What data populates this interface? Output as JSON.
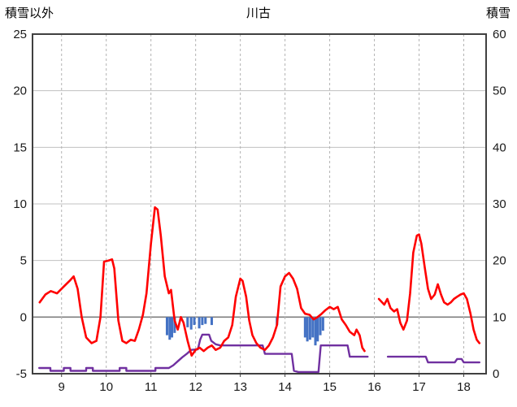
{
  "header": {
    "left_axis_label": "積雪以外",
    "title": "川古",
    "right_axis_label": "積雪"
  },
  "chart_data": {
    "type": "line",
    "title": "川古",
    "left_axis": {
      "label": "積雪以外",
      "min": -5,
      "max": 25,
      "ticks": [
        25,
        20,
        15,
        10,
        5,
        0,
        -5
      ]
    },
    "right_axis": {
      "label": "積雪",
      "min": 0,
      "max": 60,
      "ticks": [
        60,
        50,
        40,
        30,
        20,
        10,
        0
      ]
    },
    "x_axis": {
      "min": 8.35,
      "max": 18.5,
      "ticks": [
        9,
        10,
        11,
        12,
        13,
        14,
        15,
        16,
        17,
        18
      ]
    },
    "grid": {
      "h_color": "#c0c0c0",
      "v_color": "#b3b3b3",
      "zero_color": "#7f7f7f",
      "border_color": "#404040"
    },
    "series": [
      {
        "name": "precip-bars",
        "type": "bar-down",
        "axis": "left",
        "color": "#4472c4",
        "bar_width": 0.055,
        "points": [
          [
            11.36,
            1.6
          ],
          [
            11.42,
            2.0
          ],
          [
            11.47,
            1.8
          ],
          [
            11.53,
            1.4
          ],
          [
            11.82,
            0.9
          ],
          [
            11.9,
            1.1
          ],
          [
            11.97,
            0.7
          ],
          [
            12.08,
            1.0
          ],
          [
            12.15,
            0.7
          ],
          [
            12.22,
            0.6
          ],
          [
            12.36,
            0.7
          ],
          [
            13.82,
            0.7
          ],
          [
            14.45,
            1.8
          ],
          [
            14.5,
            2.15
          ],
          [
            14.56,
            2.0
          ],
          [
            14.62,
            1.8
          ],
          [
            14.68,
            2.5
          ],
          [
            14.73,
            2.15
          ],
          [
            14.79,
            1.6
          ],
          [
            14.85,
            1.2
          ]
        ]
      },
      {
        "name": "snow-depth-line",
        "type": "line",
        "axis": "right",
        "color": "#7030a0",
        "width": 2.4,
        "segments": [
          [
            [
              8.5,
              1
            ],
            [
              8.75,
              1
            ],
            [
              8.75,
              0.5
            ],
            [
              9.05,
              0.5
            ],
            [
              9.05,
              1
            ],
            [
              9.2,
              1
            ],
            [
              9.2,
              0.5
            ],
            [
              9.55,
              0.5
            ],
            [
              9.55,
              1
            ],
            [
              9.7,
              1
            ],
            [
              9.7,
              0.5
            ],
            [
              10.3,
              0.5
            ],
            [
              10.3,
              1
            ],
            [
              10.45,
              1
            ],
            [
              10.45,
              0.5
            ],
            [
              11.1,
              0.5
            ],
            [
              11.1,
              1
            ],
            [
              11.4,
              1
            ],
            [
              11.5,
              1.5
            ],
            [
              11.6,
              2.2
            ],
            [
              11.7,
              2.9
            ],
            [
              11.8,
              3.5
            ],
            [
              11.9,
              4.2
            ],
            [
              12.05,
              4.3
            ],
            [
              12.1,
              6.0
            ],
            [
              12.15,
              6.9
            ],
            [
              12.3,
              6.9
            ],
            [
              12.35,
              5.8
            ],
            [
              12.45,
              5.2
            ],
            [
              12.55,
              5.0
            ],
            [
              13.5,
              5.0
            ],
            [
              13.55,
              3.5
            ],
            [
              14.15,
              3.5
            ],
            [
              14.2,
              0.5
            ],
            [
              14.3,
              0.3
            ],
            [
              14.75,
              0.3
            ],
            [
              14.8,
              5.0
            ],
            [
              15.4,
              5.0
            ],
            [
              15.45,
              3.0
            ],
            [
              15.85,
              3.0
            ]
          ],
          [
            [
              16.3,
              3.0
            ],
            [
              17.15,
              3.0
            ],
            [
              17.2,
              2.0
            ],
            [
              17.8,
              2.0
            ],
            [
              17.85,
              2.6
            ],
            [
              17.95,
              2.6
            ],
            [
              18.0,
              2.0
            ],
            [
              18.35,
              2.0
            ]
          ]
        ]
      },
      {
        "name": "temperature-line",
        "type": "line",
        "axis": "left",
        "color": "#ff0000",
        "width": 2.6,
        "segments": [
          [
            [
              8.51,
              1.3
            ],
            [
              8.64,
              2.0
            ],
            [
              8.76,
              2.3
            ],
            [
              8.9,
              2.1
            ],
            [
              9.05,
              2.7
            ],
            [
              9.18,
              3.2
            ],
            [
              9.27,
              3.6
            ],
            [
              9.36,
              2.5
            ],
            [
              9.45,
              0.0
            ],
            [
              9.55,
              -1.8
            ],
            [
              9.67,
              -2.3
            ],
            [
              9.78,
              -2.1
            ],
            [
              9.87,
              0.0
            ],
            [
              9.95,
              4.9
            ],
            [
              10.05,
              5.0
            ],
            [
              10.13,
              5.1
            ],
            [
              10.18,
              4.3
            ],
            [
              10.27,
              -0.3
            ],
            [
              10.36,
              -2.1
            ],
            [
              10.45,
              -2.3
            ],
            [
              10.55,
              -2.0
            ],
            [
              10.64,
              -2.1
            ],
            [
              10.73,
              -1.1
            ],
            [
              10.82,
              0.2
            ],
            [
              10.9,
              2.1
            ],
            [
              11.0,
              6.5
            ],
            [
              11.09,
              9.7
            ],
            [
              11.15,
              9.5
            ],
            [
              11.22,
              7.2
            ],
            [
              11.31,
              3.6
            ],
            [
              11.4,
              2.1
            ],
            [
              11.45,
              2.4
            ],
            [
              11.53,
              -0.3
            ],
            [
              11.6,
              -1.1
            ],
            [
              11.67,
              0.0
            ],
            [
              11.73,
              -0.5
            ],
            [
              11.82,
              -2.1
            ],
            [
              11.91,
              -3.4
            ],
            [
              12.0,
              -2.9
            ],
            [
              12.09,
              -2.7
            ],
            [
              12.18,
              -3.0
            ],
            [
              12.27,
              -2.7
            ],
            [
              12.36,
              -2.5
            ],
            [
              12.45,
              -2.9
            ],
            [
              12.55,
              -2.7
            ],
            [
              12.64,
              -2.1
            ],
            [
              12.73,
              -1.8
            ],
            [
              12.82,
              -0.7
            ],
            [
              12.9,
              1.8
            ],
            [
              13.0,
              3.4
            ],
            [
              13.05,
              3.2
            ],
            [
              13.13,
              1.8
            ],
            [
              13.2,
              -0.3
            ],
            [
              13.27,
              -1.6
            ],
            [
              13.36,
              -2.3
            ],
            [
              13.45,
              -2.7
            ],
            [
              13.55,
              -2.9
            ],
            [
              13.64,
              -2.5
            ],
            [
              13.73,
              -1.8
            ],
            [
              13.82,
              -0.7
            ],
            [
              13.9,
              2.7
            ],
            [
              14.0,
              3.6
            ],
            [
              14.09,
              3.9
            ],
            [
              14.18,
              3.4
            ],
            [
              14.27,
              2.5
            ],
            [
              14.36,
              0.8
            ],
            [
              14.45,
              0.3
            ],
            [
              14.55,
              0.2
            ],
            [
              14.64,
              -0.2
            ],
            [
              14.73,
              0.0
            ],
            [
              14.82,
              0.3
            ],
            [
              14.9,
              0.6
            ],
            [
              15.0,
              0.9
            ],
            [
              15.09,
              0.7
            ],
            [
              15.18,
              0.9
            ],
            [
              15.27,
              -0.2
            ],
            [
              15.36,
              -0.7
            ],
            [
              15.45,
              -1.3
            ],
            [
              15.55,
              -1.6
            ],
            [
              15.6,
              -1.1
            ],
            [
              15.67,
              -1.6
            ],
            [
              15.73,
              -2.7
            ],
            [
              15.78,
              -3.0
            ]
          ],
          [
            [
              16.1,
              1.6
            ],
            [
              16.22,
              1.1
            ],
            [
              16.29,
              1.6
            ],
            [
              16.36,
              0.8
            ],
            [
              16.44,
              0.5
            ],
            [
              16.51,
              0.7
            ],
            [
              16.58,
              -0.5
            ],
            [
              16.65,
              -1.1
            ],
            [
              16.73,
              -0.3
            ],
            [
              16.8,
              2.1
            ],
            [
              16.87,
              5.7
            ],
            [
              16.95,
              7.2
            ],
            [
              17.0,
              7.3
            ],
            [
              17.05,
              6.5
            ],
            [
              17.13,
              4.3
            ],
            [
              17.2,
              2.5
            ],
            [
              17.27,
              1.6
            ],
            [
              17.35,
              2.0
            ],
            [
              17.42,
              2.9
            ],
            [
              17.49,
              2.0
            ],
            [
              17.56,
              1.3
            ],
            [
              17.64,
              1.1
            ],
            [
              17.71,
              1.3
            ],
            [
              17.78,
              1.6
            ],
            [
              17.85,
              1.8
            ],
            [
              17.93,
              2.0
            ],
            [
              18.0,
              2.1
            ],
            [
              18.07,
              1.6
            ],
            [
              18.15,
              0.3
            ],
            [
              18.22,
              -1.1
            ],
            [
              18.29,
              -2.0
            ],
            [
              18.35,
              -2.3
            ]
          ]
        ]
      }
    ]
  }
}
